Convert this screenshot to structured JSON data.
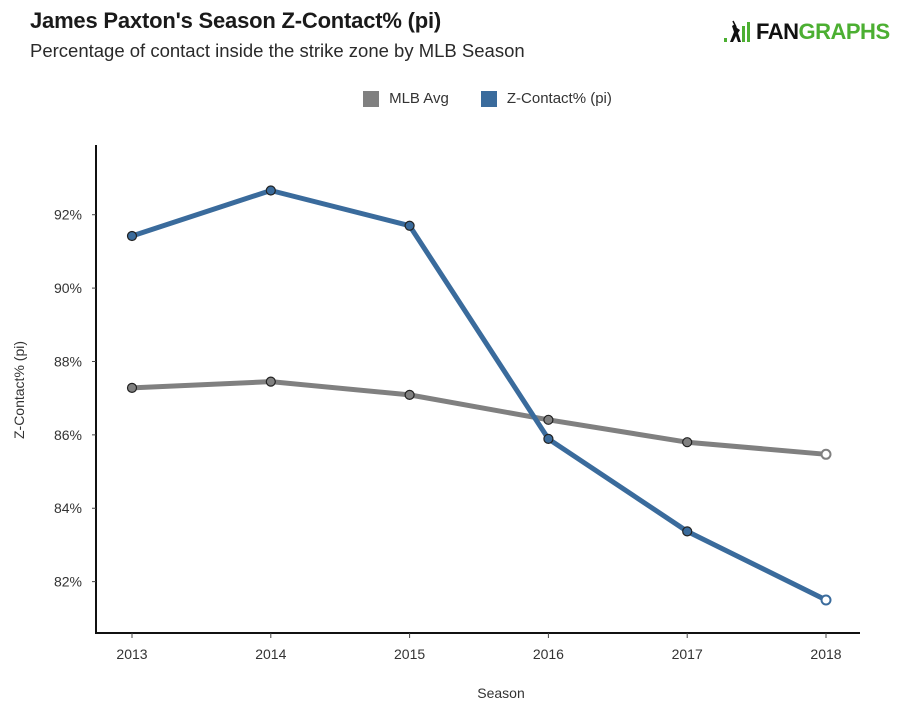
{
  "header": {
    "title": "James Paxton's Season Z-Contact% (pi)",
    "subtitle": "Percentage of contact inside the strike zone by MLB Season",
    "logo": {
      "text_dark": "FAN",
      "text_green": "GRAPHS",
      "icon": "batter-icon"
    }
  },
  "chart_data": {
    "type": "line",
    "title": "James Paxton's Season Z-Contact% (pi)",
    "subtitle": "Percentage of contact inside the strike zone by MLB Season",
    "xlabel": "Season",
    "ylabel": "Z-Contact% (pi)",
    "categories": [
      "2013",
      "2014",
      "2015",
      "2016",
      "2017",
      "2018"
    ],
    "ylim": [
      80.6,
      93.9
    ],
    "yticks": [
      82,
      84,
      86,
      88,
      90,
      92
    ],
    "ytick_labels": [
      "82%",
      "84%",
      "86%",
      "88%",
      "90%",
      "92%"
    ],
    "grid": false,
    "legend": {
      "placement": "top-center"
    },
    "series": [
      {
        "name": "MLB Avg",
        "color": "#808080",
        "values": [
          87.28,
          87.45,
          87.09,
          86.41,
          85.8,
          85.47
        ]
      },
      {
        "name": "Z-Contact% (pi)",
        "color": "#3a6b9c",
        "values": [
          91.42,
          92.66,
          91.7,
          85.89,
          83.37,
          81.5
        ]
      }
    ],
    "last_point_hollow": true
  },
  "colors": {
    "mlb_avg": "#808080",
    "player": "#3a6b9c",
    "brand_green": "#4caf32",
    "axis": "#111111"
  }
}
